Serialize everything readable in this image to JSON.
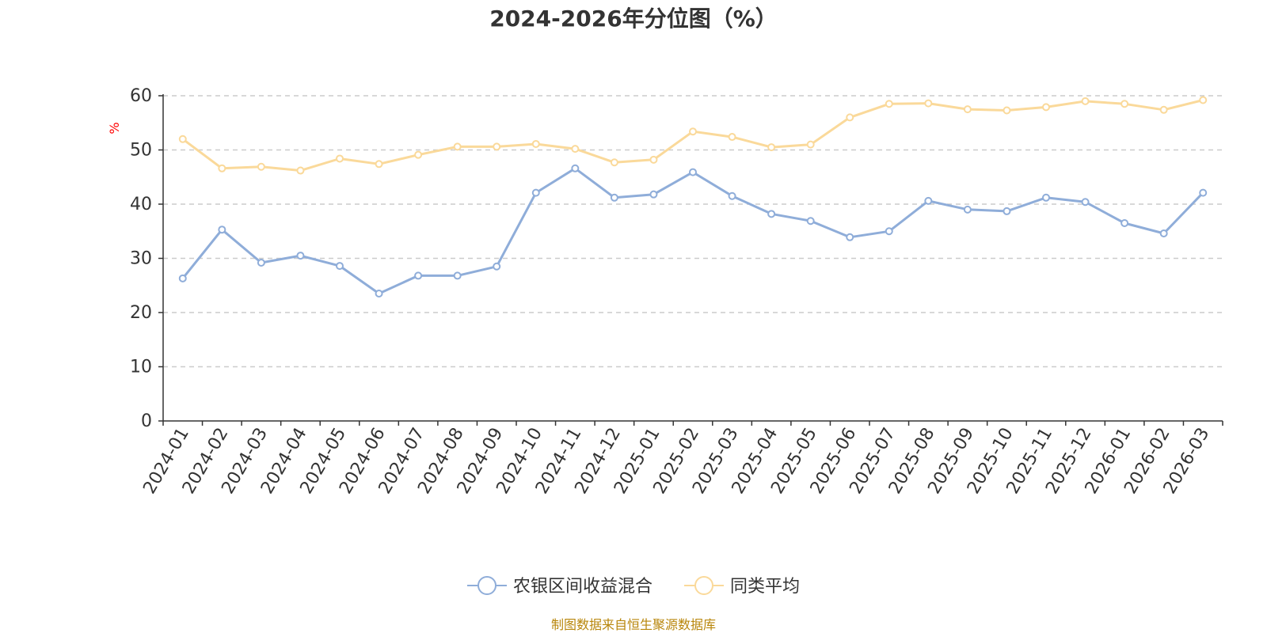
{
  "chart_data": {
    "type": "line",
    "title": "2024-2026年分位图（%）",
    "ylabel": "%",
    "xlabel": "",
    "ylim": [
      0,
      60
    ],
    "yticks": [
      0,
      10,
      20,
      30,
      40,
      50,
      60
    ],
    "grid": true,
    "legend_position": "bottom-center",
    "categories": [
      "2024-01",
      "2024-02",
      "2024-03",
      "2024-04",
      "2024-05",
      "2024-06",
      "2024-07",
      "2024-08",
      "2024-09",
      "2024-10",
      "2024-11",
      "2024-12",
      "2025-01",
      "2025-02",
      "2025-03",
      "2025-04",
      "2025-05",
      "2025-06",
      "2025-07",
      "2025-08",
      "2025-09",
      "2025-10",
      "2025-11",
      "2025-12",
      "2026-01",
      "2026-02",
      "2026-03"
    ],
    "series": [
      {
        "name": "农银区间收益混合",
        "color": "#8fadd9",
        "values": [
          26.3,
          35.3,
          29.2,
          30.5,
          28.6,
          23.5,
          26.8,
          26.8,
          28.5,
          42.1,
          46.6,
          41.2,
          41.8,
          45.9,
          41.5,
          38.2,
          36.9,
          33.9,
          35.0,
          40.6,
          39.0,
          38.7,
          41.2,
          40.4,
          36.5,
          34.6,
          42.1
        ]
      },
      {
        "name": "同类平均",
        "color": "#fad99a",
        "values": [
          52.0,
          46.6,
          46.9,
          46.2,
          48.4,
          47.4,
          49.1,
          50.6,
          50.6,
          51.1,
          50.2,
          47.7,
          48.2,
          53.4,
          52.4,
          50.5,
          51.0,
          56.0,
          58.5,
          58.6,
          57.5,
          57.3,
          57.9,
          59.0,
          58.5,
          57.4,
          59.2
        ]
      }
    ]
  },
  "source_text": "制图数据来自恒生聚源数据库"
}
